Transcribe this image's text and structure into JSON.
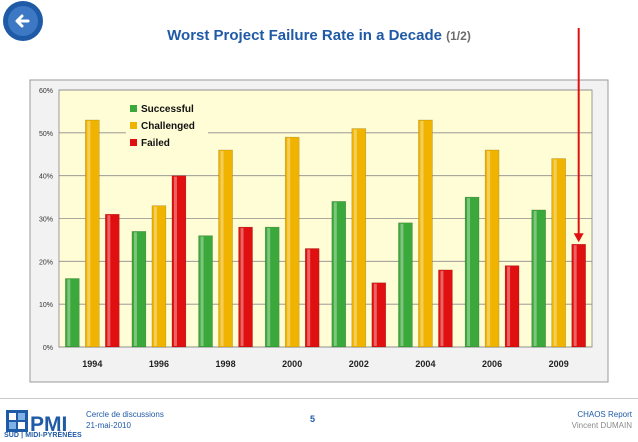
{
  "header": {
    "title": "Worst Project Failure Rate in a Decade",
    "subtitle": "(1/2)"
  },
  "colors": {
    "successful": "#3aa83a",
    "challenged": "#f0b400",
    "failed": "#e01010",
    "plot_bg": "#fffdd6",
    "title": "#1f5aa6",
    "arrow": "#e01010"
  },
  "chart_data": {
    "type": "bar",
    "title": "",
    "xlabel": "",
    "ylabel": "",
    "categories": [
      "1994",
      "1996",
      "1998",
      "2000",
      "2002",
      "2004",
      "2006",
      "2009"
    ],
    "series": [
      {
        "name": "Successful",
        "values": [
          16,
          27,
          26,
          28,
          34,
          29,
          35,
          32
        ]
      },
      {
        "name": "Challenged",
        "values": [
          53,
          33,
          46,
          49,
          51,
          53,
          46,
          44
        ]
      },
      {
        "name": "Failed",
        "values": [
          31,
          40,
          28,
          23,
          15,
          18,
          19,
          24
        ]
      }
    ],
    "yticks": [
      "0%",
      "10%",
      "20%",
      "30%",
      "40%",
      "50%",
      "60%"
    ],
    "ylim": [
      0,
      60
    ],
    "grid": true,
    "legend_position": "top-left",
    "highlight": {
      "category": "2009",
      "series": "Failed"
    }
  },
  "footer": {
    "event": "Cercle de discussions",
    "date": "21-mai-2010",
    "page": "5",
    "report": "CHAOS Report",
    "author": "Vincent DUMAIN",
    "logo_text": "PMI",
    "region": "SUD | MIDI-PYRÉNÉES"
  }
}
